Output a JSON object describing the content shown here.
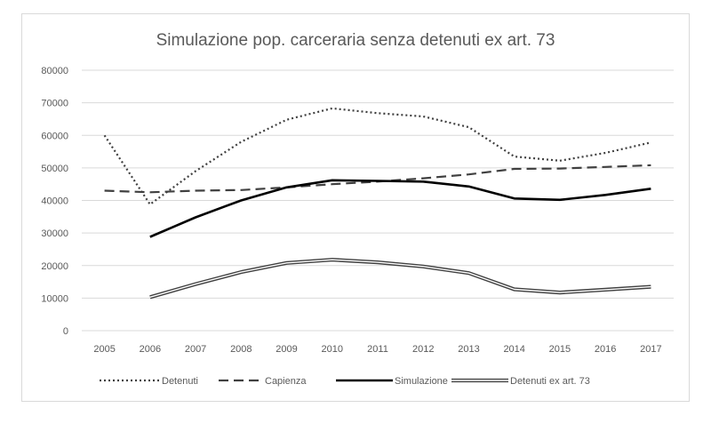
{
  "chart_data": {
    "type": "line",
    "title": "Simulazione pop. carceraria senza detenuti ex art. 73",
    "xlabel": "",
    "ylabel": "",
    "ylim": [
      0,
      80000
    ],
    "y_ticks": [
      "0",
      "10000",
      "20000",
      "30000",
      "40000",
      "50000",
      "60000",
      "70000",
      "80000"
    ],
    "categories": [
      "2005",
      "2006",
      "2007",
      "2008",
      "2009",
      "2010",
      "2011",
      "2012",
      "2013",
      "2014",
      "2015",
      "2016",
      "2017"
    ],
    "grid": "horizontal",
    "legend_position": "bottom",
    "series": [
      {
        "name": "Detenuti",
        "style": "dotted",
        "color": "#404040",
        "values": [
          60000,
          38800,
          49000,
          58000,
          64800,
          68300,
          66800,
          65800,
          62500,
          53500,
          52200,
          54600,
          57800
        ]
      },
      {
        "name": "Capienza",
        "style": "dashed",
        "color": "#404040",
        "values": [
          43000,
          42500,
          43000,
          43200,
          44000,
          45000,
          45800,
          46800,
          48000,
          49700,
          49800,
          50300,
          50800
        ]
      },
      {
        "name": "Simulazione",
        "style": "solid",
        "color": "#000000",
        "values": [
          null,
          28800,
          34800,
          40000,
          44000,
          46200,
          46000,
          45800,
          44300,
          40600,
          40200,
          41700,
          43600
        ]
      },
      {
        "name": "Detenuti ex art. 73",
        "style": "double",
        "color": "#404040",
        "values": [
          null,
          10300,
          14300,
          18000,
          20800,
          21800,
          21000,
          19700,
          17700,
          12700,
          11700,
          12600,
          13500
        ]
      }
    ]
  }
}
